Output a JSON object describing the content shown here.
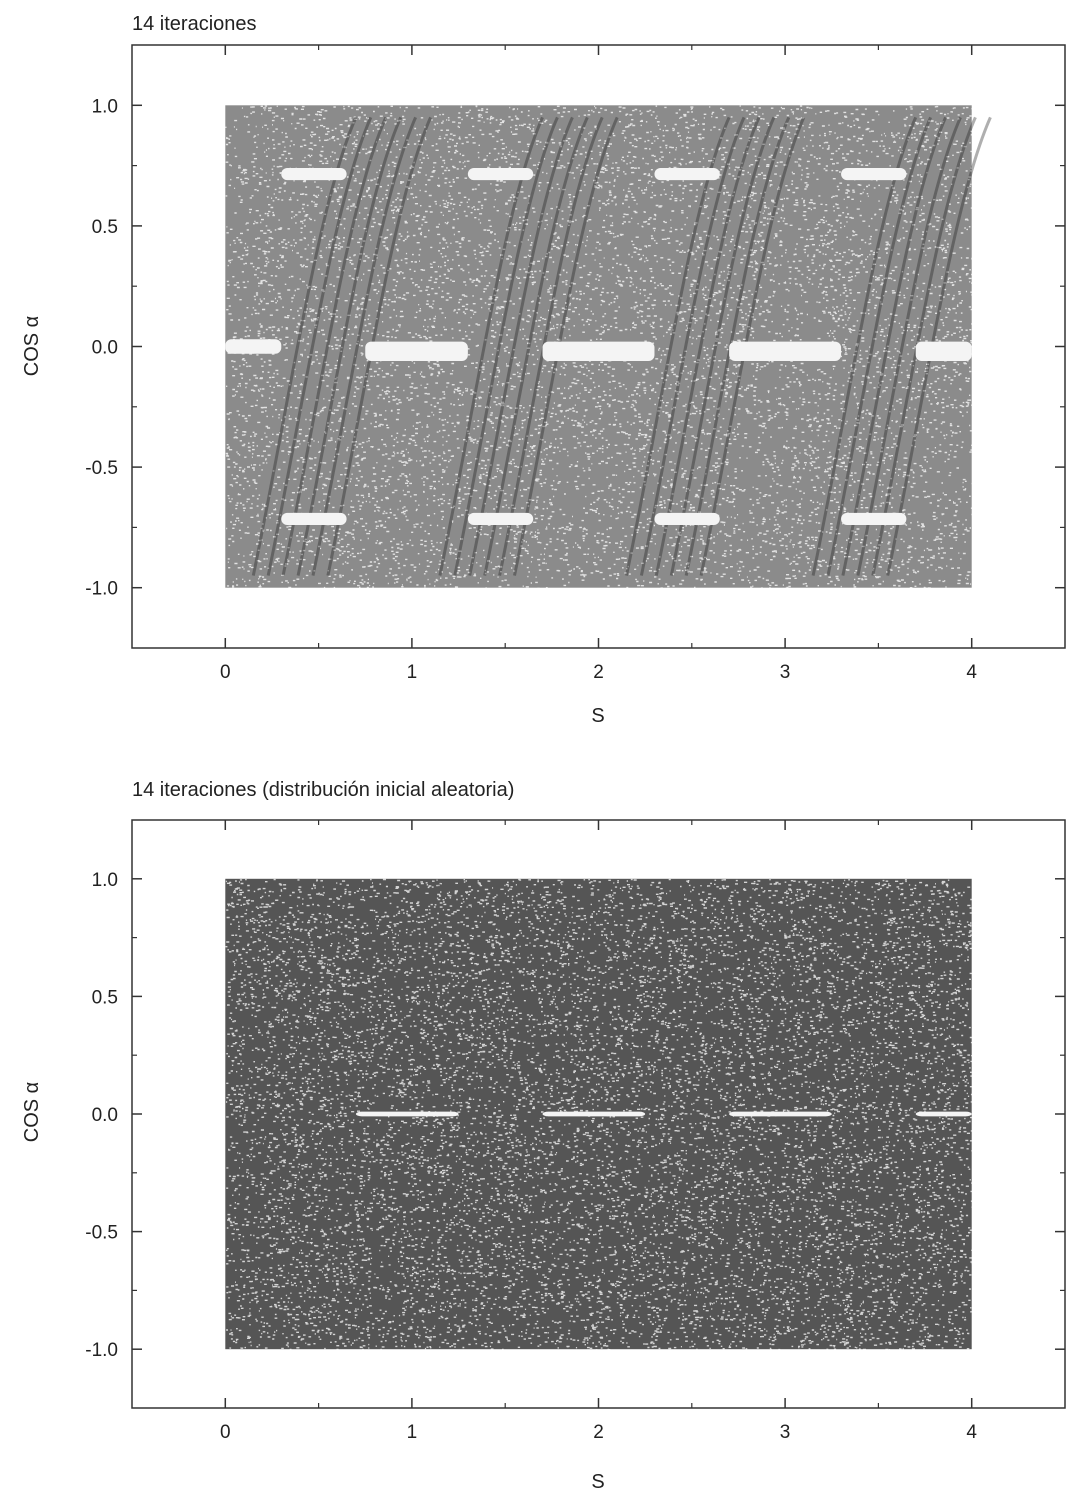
{
  "chart_data": [
    {
      "type": "scatter",
      "title": "14 iteraciones",
      "xlabel": "S",
      "ylabel": "COS α",
      "xlim": [
        -0.5,
        4.5
      ],
      "ylim": [
        -1.25,
        1.25
      ],
      "xticks": [
        "0",
        "1",
        "2",
        "3",
        "4"
      ],
      "yticks": [
        "-1.0",
        "-0.5",
        "0.0",
        "0.5",
        "1.0"
      ],
      "grid": false,
      "point_color": "#2b2b2b",
      "point_region": {
        "x": [
          0,
          4
        ],
        "y": [
          -1,
          1
        ]
      },
      "gaps": [
        {
          "x": [
            0.0,
            0.3
          ],
          "y": [
            -0.03,
            0.03
          ]
        },
        {
          "x": [
            0.75,
            1.3
          ],
          "y": [
            -0.06,
            0.02
          ]
        },
        {
          "x": [
            1.7,
            2.3
          ],
          "y": [
            -0.06,
            0.02
          ]
        },
        {
          "x": [
            2.7,
            3.3
          ],
          "y": [
            -0.06,
            0.02
          ]
        },
        {
          "x": [
            3.7,
            4.0
          ],
          "y": [
            -0.06,
            0.02
          ]
        },
        {
          "x": [
            0.3,
            0.65
          ],
          "y": [
            0.69,
            0.74
          ]
        },
        {
          "x": [
            1.3,
            1.65
          ],
          "y": [
            0.69,
            0.74
          ]
        },
        {
          "x": [
            2.3,
            2.65
          ],
          "y": [
            0.69,
            0.74
          ]
        },
        {
          "x": [
            3.3,
            3.65
          ],
          "y": [
            0.69,
            0.74
          ]
        },
        {
          "x": [
            0.3,
            0.65
          ],
          "y": [
            -0.74,
            -0.69
          ]
        },
        {
          "x": [
            1.3,
            1.65
          ],
          "y": [
            -0.74,
            -0.69
          ]
        },
        {
          "x": [
            2.3,
            2.65
          ],
          "y": [
            -0.74,
            -0.69
          ]
        },
        {
          "x": [
            3.3,
            3.65
          ],
          "y": [
            -0.74,
            -0.69
          ]
        }
      ],
      "density": 0.55
    },
    {
      "type": "scatter",
      "title": "14 iteraciones (distribución inicial aleatoria)",
      "xlabel": "S",
      "ylabel": "COS α",
      "xlim": [
        -0.5,
        4.5
      ],
      "ylim": [
        -1.25,
        1.25
      ],
      "xticks": [
        "0",
        "1",
        "2",
        "3",
        "4"
      ],
      "yticks": [
        "-1.0",
        "-0.5",
        "0.0",
        "0.5",
        "1.0"
      ],
      "grid": false,
      "point_color": "#2b2b2b",
      "point_region": {
        "x": [
          0,
          4
        ],
        "y": [
          -1,
          1
        ]
      },
      "gaps": [
        {
          "x": [
            0.7,
            1.25
          ],
          "y": [
            -0.01,
            0.01
          ]
        },
        {
          "x": [
            1.7,
            2.25
          ],
          "y": [
            -0.01,
            0.01
          ]
        },
        {
          "x": [
            2.7,
            3.25
          ],
          "y": [
            -0.01,
            0.01
          ]
        },
        {
          "x": [
            3.7,
            4.0
          ],
          "y": [
            -0.01,
            0.01
          ]
        }
      ],
      "density": 0.8
    }
  ]
}
